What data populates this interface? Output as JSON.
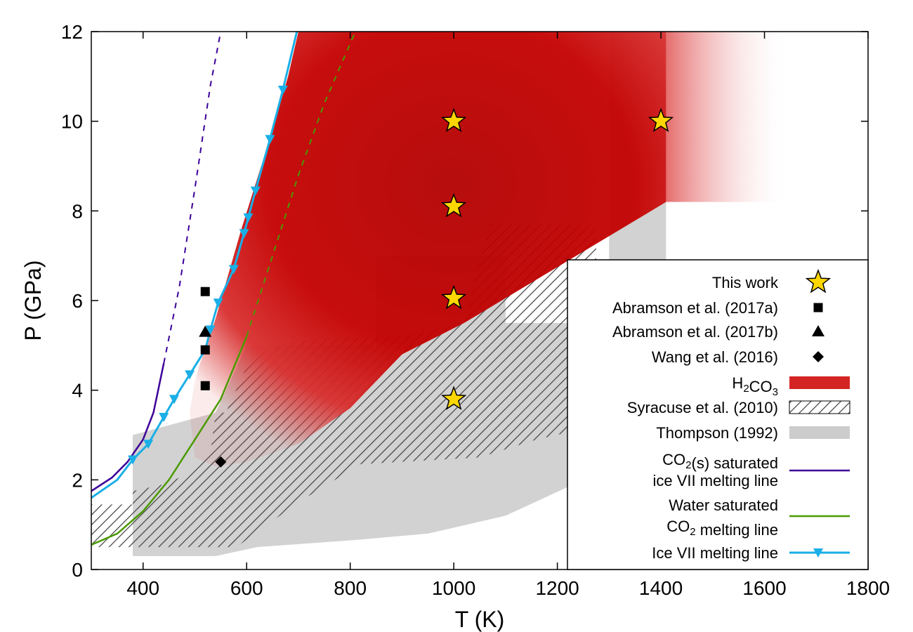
{
  "chart_data": {
    "type": "scatter",
    "xlabel": "T (K)",
    "ylabel": "P (GPa)",
    "xlim": [
      300,
      1800
    ],
    "ylim": [
      0,
      12
    ],
    "xticks": [
      400,
      600,
      800,
      1000,
      1200,
      1400,
      1600,
      1800
    ],
    "yticks": [
      0,
      2,
      4,
      6,
      8,
      10,
      12
    ],
    "legend_position": "bottom-right",
    "regions": [
      {
        "name": "Thompson (1992)",
        "color": "#cccccc",
        "polygon": [
          [
            380,
            0.3
          ],
          [
            540,
            0.3
          ],
          [
            620,
            0.5
          ],
          [
            800,
            0.65
          ],
          [
            950,
            0.8
          ],
          [
            1100,
            1.2
          ],
          [
            1250,
            2.0
          ],
          [
            1410,
            3.2
          ],
          [
            1410,
            12
          ],
          [
            1300,
            12
          ],
          [
            1300,
            5.5
          ],
          [
            1100,
            5.5
          ],
          [
            1100,
            7.0
          ],
          [
            850,
            7.0
          ],
          [
            850,
            5.0
          ],
          [
            600,
            5.0
          ],
          [
            540,
            3.5
          ],
          [
            380,
            3.0
          ]
        ]
      },
      {
        "name": "Syracuse et al. (2010)",
        "color": "#333333",
        "polygon": [
          [
            300,
            1.45
          ],
          [
            380,
            1.45
          ],
          [
            380,
            1.75
          ],
          [
            440,
            1.9
          ],
          [
            480,
            2.1
          ],
          [
            530,
            2.6
          ],
          [
            540,
            3.5
          ],
          [
            560,
            3.5
          ],
          [
            610,
            4.8
          ],
          [
            700,
            5.1
          ],
          [
            900,
            5.2
          ],
          [
            1020,
            5.5
          ],
          [
            1040,
            6.5
          ],
          [
            1070,
            7.7
          ],
          [
            1275,
            7.7
          ],
          [
            1275,
            3.2
          ],
          [
            1160,
            2.9
          ],
          [
            1050,
            2.5
          ],
          [
            820,
            2.35
          ],
          [
            700,
            1.5
          ],
          [
            580,
            0.5
          ],
          [
            390,
            0.5
          ],
          [
            390,
            0.5
          ],
          [
            300,
            0.5
          ]
        ]
      },
      {
        "name": "H2CO3",
        "color": "#cc0000",
        "polygon": [
          [
            490,
            3.5
          ],
          [
            500,
            4.2
          ],
          [
            510,
            4.6
          ],
          [
            520,
            4.9
          ],
          [
            540,
            5.6
          ],
          [
            560,
            6.4
          ],
          [
            590,
            7.6
          ],
          [
            620,
            8.7
          ],
          [
            650,
            9.8
          ],
          [
            680,
            11.0
          ],
          [
            700,
            12
          ],
          [
            1410,
            12
          ],
          [
            1410,
            8.2
          ],
          [
            1020,
            5.5
          ],
          [
            900,
            4.8
          ],
          [
            800,
            3.6
          ],
          [
            700,
            2.8
          ],
          [
            600,
            2.4
          ],
          [
            540,
            2.3
          ],
          [
            500,
            2.5
          ]
        ]
      }
    ],
    "series": [
      {
        "name": "Ice VII melting line",
        "color": "#1aafe6",
        "marker": "triangle-down",
        "points": [
          [
            300,
            1.6
          ],
          [
            350,
            2.0
          ],
          [
            380,
            2.45
          ],
          [
            410,
            2.8
          ],
          [
            440,
            3.4
          ],
          [
            460,
            3.8
          ],
          [
            490,
            4.35
          ],
          [
            520,
            4.9
          ],
          [
            530,
            5.35
          ],
          [
            545,
            5.95
          ],
          [
            575,
            6.7
          ],
          [
            595,
            7.5
          ],
          [
            603,
            7.85
          ],
          [
            617,
            8.45
          ],
          [
            645,
            9.6
          ],
          [
            670,
            10.7
          ],
          [
            697,
            12
          ]
        ],
        "marker_points": [
          [
            380,
            2.45
          ],
          [
            410,
            2.8
          ],
          [
            440,
            3.4
          ],
          [
            460,
            3.8
          ],
          [
            490,
            4.35
          ],
          [
            520,
            4.9
          ],
          [
            530,
            5.35
          ],
          [
            545,
            5.95
          ],
          [
            575,
            6.7
          ],
          [
            595,
            7.5
          ],
          [
            603,
            7.85
          ],
          [
            617,
            8.45
          ],
          [
            645,
            9.6
          ],
          [
            670,
            10.7
          ]
        ]
      },
      {
        "name": "CO2(s) saturated ice VII melting line",
        "color": "#3d0099",
        "solid": [
          [
            300,
            1.75
          ],
          [
            340,
            2.05
          ],
          [
            370,
            2.4
          ],
          [
            400,
            2.9
          ],
          [
            420,
            3.5
          ],
          [
            440,
            4.6
          ]
        ],
        "dashed": [
          [
            440,
            4.6
          ],
          [
            470,
            6.3
          ],
          [
            500,
            8.5
          ],
          [
            530,
            10.8
          ],
          [
            550,
            12
          ]
        ]
      },
      {
        "name": "Water saturated CO2 melting line",
        "color": "#4a9a00",
        "solid": [
          [
            300,
            0.55
          ],
          [
            350,
            0.8
          ],
          [
            400,
            1.3
          ],
          [
            450,
            2.0
          ],
          [
            500,
            2.9
          ],
          [
            550,
            3.8
          ],
          [
            600,
            5.2
          ]
        ],
        "dashed": [
          [
            600,
            5.2
          ],
          [
            650,
            7.0
          ],
          [
            700,
            8.8
          ],
          [
            750,
            10.4
          ],
          [
            810,
            12
          ]
        ]
      }
    ],
    "points": [
      {
        "name": "This work",
        "marker": "star",
        "color": "#ffd700",
        "data": [
          [
            1000,
            10.0
          ],
          [
            1000,
            8.1
          ],
          [
            1000,
            6.05
          ],
          [
            1000,
            3.8
          ],
          [
            1400,
            10.0
          ]
        ]
      },
      {
        "name": "Abramson et al. (2017a)",
        "marker": "square",
        "color": "#000000",
        "data": [
          [
            520,
            6.2
          ],
          [
            520,
            4.9
          ],
          [
            520,
            4.1
          ]
        ]
      },
      {
        "name": "Abramson et al. (2017b)",
        "marker": "triangle",
        "color": "#000000",
        "data": [
          [
            520,
            5.3
          ]
        ]
      },
      {
        "name": "Wang et al. (2016)",
        "marker": "diamond",
        "color": "#000000",
        "data": [
          [
            550,
            2.4
          ]
        ]
      }
    ],
    "legend": [
      {
        "lines": [
          "This work"
        ],
        "symbol": "star"
      },
      {
        "lines": [
          "Abramson et al. (2017a)"
        ],
        "symbol": "square"
      },
      {
        "lines": [
          "Abramson et al. (2017b)"
        ],
        "symbol": "triangle"
      },
      {
        "lines": [
          "Wang et al. (2016)"
        ],
        "symbol": "diamond"
      },
      {
        "lines": [
          "H2CO3"
        ],
        "symbol": "red-box"
      },
      {
        "lines": [
          "Syracuse et al. (2010)"
        ],
        "symbol": "hatch-box"
      },
      {
        "lines": [
          "Thompson (1992)"
        ],
        "symbol": "grey-box"
      },
      {
        "lines": [
          "CO2(s) saturated",
          "ice VII melting line"
        ],
        "symbol": "purple-line"
      },
      {
        "lines": [
          "Water saturated",
          "CO2 melting line"
        ],
        "symbol": "green-line"
      },
      {
        "lines": [
          "Ice VII melting line"
        ],
        "symbol": "blue-line-triangle"
      }
    ]
  }
}
